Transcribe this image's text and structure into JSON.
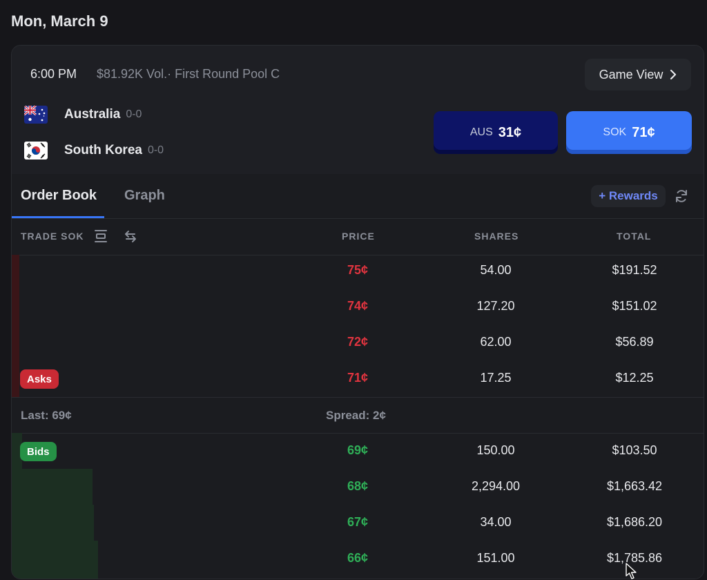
{
  "date_header": "Mon, March 9",
  "match": {
    "time": "6:00 PM",
    "volume_info": "$81.92K Vol.· First Round Pool C",
    "game_view_label": "Game View",
    "teams": [
      {
        "name": "Australia",
        "record": "0-0",
        "flag": "australia-flag"
      },
      {
        "name": "South Korea",
        "record": "0-0",
        "flag": "south-korea-flag"
      }
    ],
    "buttons": [
      {
        "code": "AUS",
        "price": "31¢",
        "color": "#0d1466"
      },
      {
        "code": "SOK",
        "price": "71¢",
        "color": "#3875f6"
      }
    ]
  },
  "tabs": [
    {
      "label": "Order Book",
      "active": true
    },
    {
      "label": "Graph",
      "active": false
    }
  ],
  "rewards_label": "+ Rewards",
  "columns": {
    "trade": "TRADE SOK",
    "price": "PRICE",
    "shares": "SHARES",
    "total": "TOTAL"
  },
  "asks_label": "Asks",
  "bids_label": "Bids",
  "asks": [
    {
      "price": "75¢",
      "shares": "54.00",
      "total": "$191.52"
    },
    {
      "price": "74¢",
      "shares": "127.20",
      "total": "$151.02"
    },
    {
      "price": "72¢",
      "shares": "62.00",
      "total": "$56.89"
    },
    {
      "price": "71¢",
      "shares": "17.25",
      "total": "$12.25"
    }
  ],
  "last_label": "Last: 69¢",
  "spread_label": "Spread: 2¢",
  "bids": [
    {
      "price": "69¢",
      "shares": "150.00",
      "total": "$103.50"
    },
    {
      "price": "68¢",
      "shares": "2,294.00",
      "total": "$1,663.42"
    },
    {
      "price": "67¢",
      "shares": "34.00",
      "total": "$1,686.20"
    },
    {
      "price": "66¢",
      "shares": "151.00",
      "total": "$1,785.86"
    }
  ],
  "colors": {
    "ask": "#e0343f",
    "bid": "#2fae57",
    "accent": "#3875f6",
    "rewards": "#6f88f7"
  }
}
